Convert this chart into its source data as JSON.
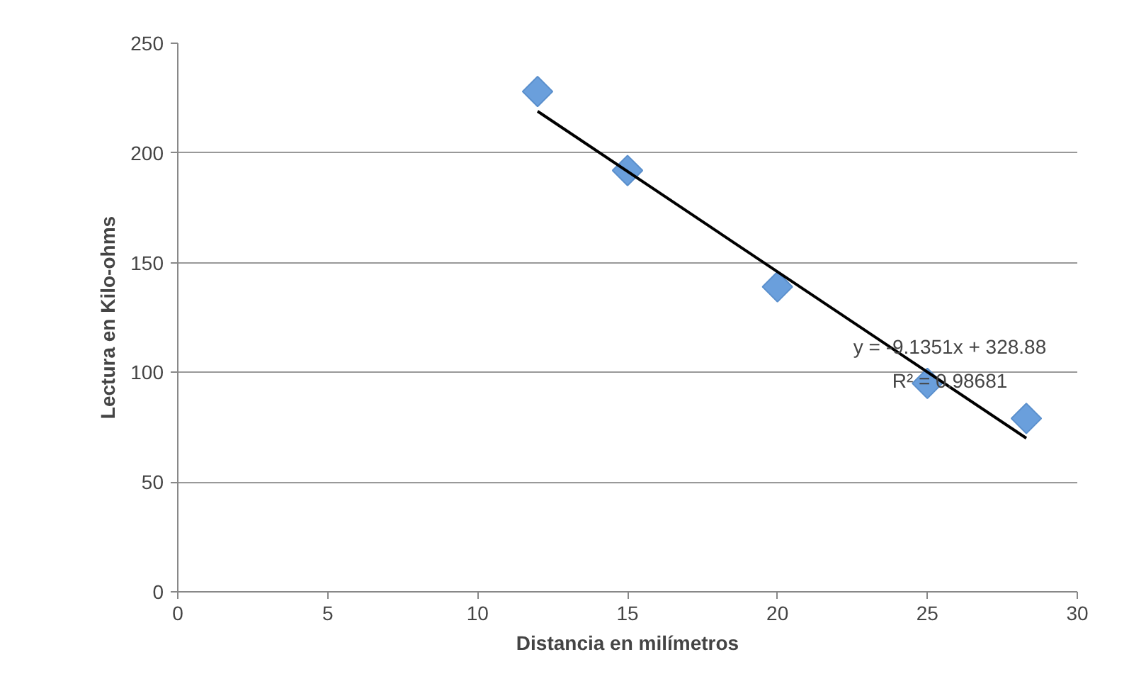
{
  "chart_data": {
    "type": "scatter",
    "xlabel": "Distancia en milímetros",
    "ylabel": "Lectura en Kilo-ohms",
    "x": [
      12,
      15,
      20,
      25,
      28.3
    ],
    "series": [
      {
        "color": "#6a9fdc",
        "values": [
          228,
          192,
          139,
          95,
          79
        ],
        "marker": "diamond"
      },
      {
        "type": "line",
        "color": "#000000",
        "x": [
          12,
          28.3
        ],
        "values": [
          219,
          70
        ],
        "marker": "none"
      }
    ],
    "annotations": [
      "y = -9.1351x + 328.88",
      "R² = 0.98681"
    ],
    "xlim": [
      0,
      30
    ],
    "xticks": [
      0,
      5,
      10,
      15,
      20,
      25,
      30
    ],
    "ylim": [
      0,
      250
    ],
    "yticks": [
      0,
      50,
      100,
      150,
      200,
      250
    ],
    "grid": "y"
  }
}
